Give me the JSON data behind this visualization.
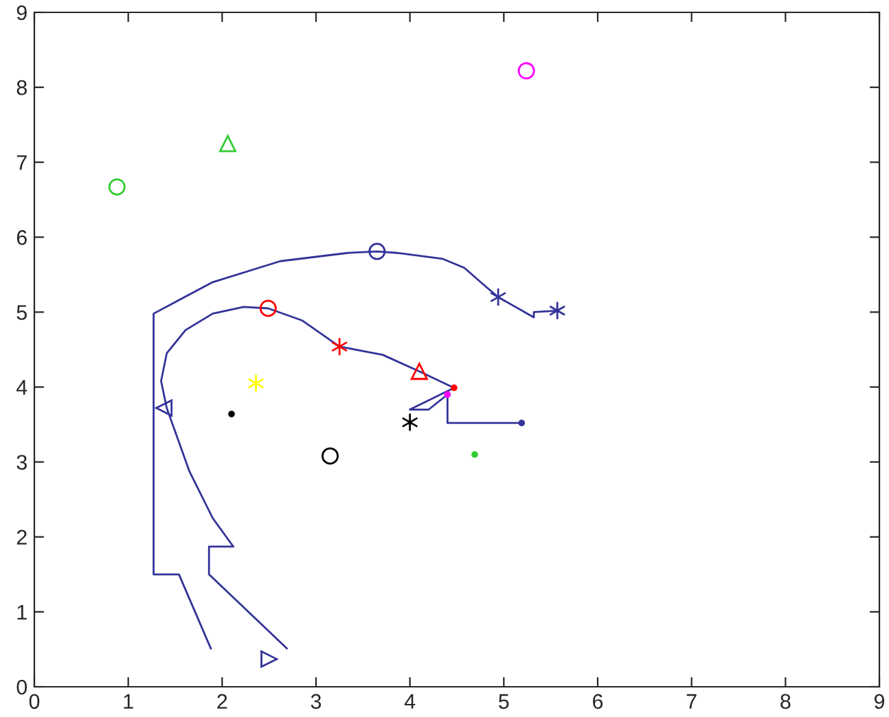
{
  "chart_data": {
    "type": "line",
    "xlim": [
      0,
      9
    ],
    "ylim": [
      0,
      9
    ],
    "xticks": [
      0,
      1,
      2,
      3,
      4,
      5,
      6,
      7,
      8,
      9
    ],
    "yticks": [
      0,
      1,
      2,
      3,
      4,
      5,
      6,
      7,
      8,
      9
    ],
    "grid": false,
    "legend": false,
    "series": [
      {
        "type": "line",
        "color": "#333399",
        "marker": "none",
        "x": [
          1.88,
          1.54,
          1.27,
          1.27,
          1.9,
          2.62,
          3.34,
          3.65,
          3.86,
          4.35,
          4.58,
          4.78,
          4.94,
          5.32,
          5.32,
          5.57
        ],
        "values": [
          0.51,
          1.5,
          1.5,
          4.98,
          5.4,
          5.68,
          5.79,
          5.81,
          5.79,
          5.71,
          5.59,
          5.37,
          5.2,
          4.93,
          5.0,
          5.02
        ]
      },
      {
        "type": "line",
        "color": "#333399",
        "marker": "none",
        "x": [
          2.69,
          1.86,
          1.86,
          2.12,
          1.9,
          1.65,
          1.41,
          1.35,
          1.41,
          1.61,
          1.9,
          2.23,
          2.49,
          2.85,
          3.25,
          3.71,
          4.1,
          4.47,
          4.0,
          4.2,
          4.4,
          4.4,
          5.19
        ],
        "values": [
          0.51,
          1.5,
          1.87,
          1.87,
          2.25,
          2.88,
          3.72,
          4.08,
          4.45,
          4.76,
          4.98,
          5.07,
          5.05,
          4.89,
          4.54,
          4.43,
          4.21,
          3.99,
          3.7,
          3.7,
          3.9,
          3.52,
          3.52
        ]
      },
      {
        "type": "scatter",
        "color": "#33cc33",
        "marker": "circle",
        "x": [
          0.88
        ],
        "values": [
          6.67
        ]
      },
      {
        "type": "scatter",
        "color": "#33cc33",
        "marker": "triangle",
        "x": [
          2.06
        ],
        "values": [
          7.25
        ]
      },
      {
        "type": "scatter",
        "color": "#ff00ff",
        "marker": "circle",
        "x": [
          5.24
        ],
        "values": [
          8.22
        ]
      },
      {
        "type": "scatter",
        "color": "#333399",
        "marker": "circle",
        "x": [
          3.65
        ],
        "values": [
          5.81
        ]
      },
      {
        "type": "scatter",
        "color": "#ff0000",
        "marker": "circle",
        "x": [
          2.49
        ],
        "values": [
          5.05
        ]
      },
      {
        "type": "scatter",
        "color": "#333399",
        "marker": "cross",
        "x": [
          4.94,
          5.57
        ],
        "values": [
          5.2,
          5.02
        ]
      },
      {
        "type": "scatter",
        "color": "#ff0000",
        "marker": "cross",
        "x": [
          3.25
        ],
        "values": [
          4.54
        ]
      },
      {
        "type": "scatter",
        "color": "#ff0000",
        "marker": "triangle",
        "x": [
          4.1
        ],
        "values": [
          4.21
        ]
      },
      {
        "type": "scatter",
        "color": "#ff0000",
        "marker": "point",
        "x": [
          4.47
        ],
        "values": [
          3.99
        ]
      },
      {
        "type": "scatter",
        "color": "#ffff00",
        "marker": "cross",
        "x": [
          2.36
        ],
        "values": [
          4.05
        ]
      },
      {
        "type": "scatter",
        "color": "#333399",
        "marker": "triangle_left",
        "x": [
          1.38
        ],
        "values": [
          3.72
        ]
      },
      {
        "type": "scatter",
        "color": "#000000",
        "marker": "point",
        "x": [
          2.1
        ],
        "values": [
          3.64
        ]
      },
      {
        "type": "scatter",
        "color": "#000000",
        "marker": "cross",
        "x": [
          4.0
        ],
        "values": [
          3.53
        ]
      },
      {
        "type": "scatter",
        "color": "#ff00ff",
        "marker": "point",
        "x": [
          4.4
        ],
        "values": [
          3.9
        ]
      },
      {
        "type": "scatter",
        "color": "#333399",
        "marker": "point",
        "x": [
          5.19
        ],
        "values": [
          3.52
        ]
      },
      {
        "type": "scatter",
        "color": "#000000",
        "marker": "circle",
        "x": [
          3.15
        ],
        "values": [
          3.08
        ]
      },
      {
        "type": "scatter",
        "color": "#33cc33",
        "marker": "point",
        "x": [
          4.69
        ],
        "values": [
          3.1
        ]
      },
      {
        "type": "scatter",
        "color": "#333399",
        "marker": "triangle_right",
        "x": [
          2.5
        ],
        "values": [
          0.37
        ]
      }
    ]
  }
}
